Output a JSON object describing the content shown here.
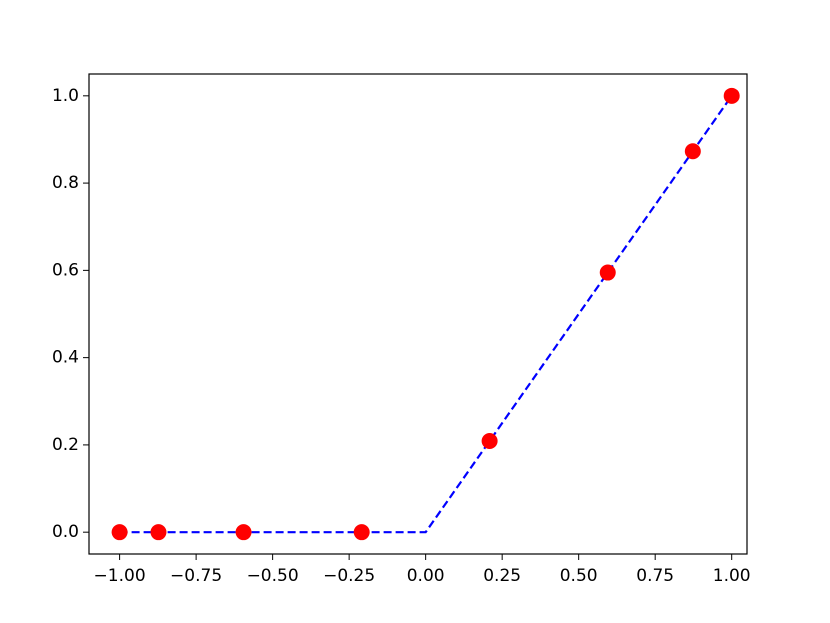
{
  "chart_data": {
    "type": "line",
    "series": [
      {
        "color": "#0000ff",
        "linestyle": "dashed",
        "marker": "none",
        "x": [
          -1,
          0,
          1
        ],
        "values": [
          0,
          0,
          1
        ]
      },
      {
        "color": "#ff0000",
        "linestyle": "none",
        "marker": "circle",
        "x": [
          -1,
          -0.873,
          -0.595,
          -0.209,
          0.209,
          0.595,
          0.873,
          1
        ],
        "values": [
          0,
          0,
          0,
          0,
          0.209,
          0.595,
          0.873,
          1
        ]
      }
    ],
    "xlim": [
      -1.1,
      1.05
    ],
    "ylim": [
      -0.05,
      1.05
    ],
    "xticks": [
      {
        "value": -1,
        "label": "−1.00"
      },
      {
        "value": -0.75,
        "label": "−0.75"
      },
      {
        "value": -0.5,
        "label": "−0.50"
      },
      {
        "value": -0.25,
        "label": "−0.25"
      },
      {
        "value": 0,
        "label": "0.00"
      },
      {
        "value": 0.25,
        "label": "0.25"
      },
      {
        "value": 0.5,
        "label": "0.50"
      },
      {
        "value": 0.75,
        "label": "0.75"
      },
      {
        "value": 1,
        "label": "1.00"
      }
    ],
    "yticks": [
      {
        "value": 0,
        "label": "0.0"
      },
      0.2,
      0.4,
      0.6,
      0.8,
      {
        "value": 1,
        "label": "1.0"
      }
    ],
    "grid": false
  }
}
